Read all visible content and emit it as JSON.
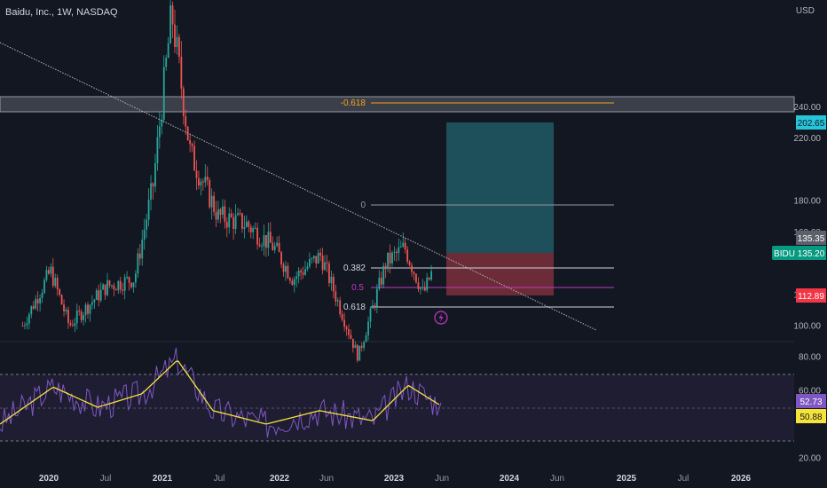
{
  "header": {
    "symbol_title": "Baidu, Inc., 1W, NASDAQ"
  },
  "currency": "USD",
  "colors": {
    "background": "#131722",
    "up": "#26a69a",
    "down": "#ef5350",
    "rsi_line": "#7e57c2",
    "rsi_ma": "#f5e23b",
    "fib_orange": "#f7a21b",
    "profit_zone": "#1f5560",
    "loss_zone": "#6b2c36",
    "trendline": "#b2b5be"
  },
  "price_axis": {
    "ticks": [
      "240.00",
      "220.00",
      "180.00",
      "160.00",
      "120.00",
      "100.00"
    ],
    "rsi_ticks": [
      "80.00",
      "60.00",
      "20.00"
    ]
  },
  "price_badges": [
    {
      "label": "202.65",
      "kind": "target"
    },
    {
      "label": "135.35",
      "kind": "last"
    },
    {
      "label": "BIDU",
      "value": "135.20",
      "kind": "symbol"
    },
    {
      "label": "112.89",
      "kind": "stop"
    },
    {
      "label": "52.73",
      "kind": "rsi"
    },
    {
      "label": "50.88",
      "kind": "rsi_ma"
    }
  ],
  "fib_labels": {
    "extension": "-0.618",
    "zero": "0",
    "level_382": "0.382",
    "level_5": "0.5",
    "level_618": "0.618"
  },
  "time_axis": [
    "2020",
    "Jul",
    "2021",
    "Jul",
    "2022",
    "Jun",
    "2023",
    "Jun",
    "2024",
    "Jun",
    "2025",
    "Jul",
    "2026"
  ],
  "chart_data": {
    "type": "candlestick",
    "title": "Baidu, Inc., 1W, NASDAQ",
    "y_axis": {
      "unit": "USD",
      "range_approx": [
        90,
        260
      ]
    },
    "approx_close_path": [
      {
        "t": "2019-10",
        "close": 100
      },
      {
        "t": "2020-01",
        "close": 135
      },
      {
        "t": "2020-03",
        "close": 100
      },
      {
        "t": "2020-07",
        "close": 125
      },
      {
        "t": "2020-10",
        "close": 130
      },
      {
        "t": "2020-12",
        "close": 190
      },
      {
        "t": "2021-02",
        "close": 300
      },
      {
        "t": "2021-04",
        "close": 210
      },
      {
        "t": "2021-07",
        "close": 170
      },
      {
        "t": "2021-10",
        "close": 165
      },
      {
        "t": "2022-01",
        "close": 150
      },
      {
        "t": "2022-03",
        "close": 130
      },
      {
        "t": "2022-06",
        "close": 145
      },
      {
        "t": "2022-10",
        "close": 80
      },
      {
        "t": "2023-01",
        "close": 140
      },
      {
        "t": "2023-03",
        "close": 150
      },
      {
        "t": "2023-05",
        "close": 120
      },
      {
        "t": "2023-06",
        "close": 135.2
      }
    ],
    "fib_levels": {
      "-0.618": 213,
      "0": 159,
      "0.382": 127,
      "0.5": 117,
      "0.618": 106
    },
    "horizontal_zone": [
      209,
      216
    ],
    "position_box": {
      "entry": 135.35,
      "target": 202.65,
      "stop": 112.89
    },
    "last_price": 135.2,
    "rsi": {
      "value": 52.73,
      "ma": 50.88,
      "range": [
        20,
        80
      ],
      "ticks": [
        80,
        60,
        20
      ]
    }
  }
}
